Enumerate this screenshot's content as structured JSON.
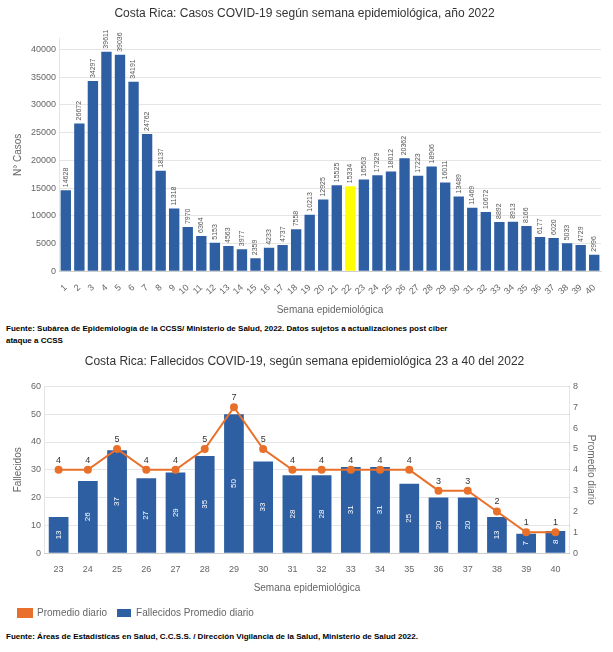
{
  "chart_data": [
    {
      "type": "bar",
      "title": "Costa Rica: Casos COVID-19 según semana epidemiológica, año 2022",
      "xlabel": "Semana epidemiológica",
      "ylabel": "N° Casos",
      "categories": [
        "1",
        "2",
        "3",
        "4",
        "5",
        "6",
        "7",
        "8",
        "9",
        "10",
        "11",
        "12",
        "13",
        "14",
        "15",
        "16",
        "17",
        "18",
        "19",
        "20",
        "21",
        "22",
        "23",
        "24",
        "25",
        "26",
        "27",
        "28",
        "29",
        "30",
        "31",
        "32",
        "33",
        "34",
        "35",
        "36",
        "37",
        "38",
        "39",
        "40"
      ],
      "values": [
        14628,
        26672,
        34297,
        39611,
        39036,
        34191,
        24762,
        18137,
        11318,
        7970,
        6364,
        5153,
        4563,
        3977,
        2359,
        4233,
        4737,
        7558,
        10213,
        12925,
        15525,
        15334,
        16563,
        17329,
        18012,
        20362,
        17223,
        18906,
        16011,
        13489,
        11469,
        10672,
        8892,
        8913,
        8166,
        6177,
        6020,
        5033,
        4729,
        2996
      ],
      "colors": [
        "#2E5FA3",
        "#2E5FA3",
        "#2E5FA3",
        "#2E5FA3",
        "#2E5FA3",
        "#2E5FA3",
        "#2E5FA3",
        "#2E5FA3",
        "#2E5FA3",
        "#2E5FA3",
        "#2E5FA3",
        "#2E5FA3",
        "#2E5FA3",
        "#2E5FA3",
        "#2E5FA3",
        "#2E5FA3",
        "#2E5FA3",
        "#2E5FA3",
        "#2E5FA3",
        "#2E5FA3",
        "#2E5FA3",
        "#FFFF00",
        "#2E5FA3",
        "#2E5FA3",
        "#2E5FA3",
        "#2E5FA3",
        "#2E5FA3",
        "#2E5FA3",
        "#2E5FA3",
        "#2E5FA3",
        "#2E5FA3",
        "#2E5FA3",
        "#2E5FA3",
        "#2E5FA3",
        "#2E5FA3",
        "#2E5FA3",
        "#2E5FA3",
        "#2E5FA3",
        "#2E5FA3",
        "#2E5FA3"
      ],
      "ylim": [
        0,
        42000
      ],
      "yticks": [
        0,
        5000,
        10000,
        15000,
        20000,
        25000,
        30000,
        35000,
        40000
      ],
      "grid": true,
      "data_labels": true,
      "annotations": [
        "Fuente: Subárea de Epidemiología de la CCSS/ Ministerio de Salud, 2022. Datos sujetos a actualizaciones post ciber",
        "ataque a CCSS"
      ]
    },
    {
      "type": "bar",
      "title": "Costa Rica: Fallecidos COVID-19, según semana epidemiológica 23 a 40 del 2022",
      "xlabel": "Semana epidemiológica",
      "ylabel": "Fallecidos",
      "y2label": "Promedio diario",
      "categories": [
        "23",
        "24",
        "25",
        "26",
        "27",
        "28",
        "29",
        "30",
        "31",
        "32",
        "33",
        "34",
        "35",
        "36",
        "37",
        "38",
        "39",
        "40"
      ],
      "series": [
        {
          "name": "Fallecidos Promedio diario",
          "type": "bar",
          "color": "#2E5FA3",
          "values": [
            13,
            26,
            37,
            27,
            29,
            35,
            50,
            33,
            28,
            28,
            31,
            31,
            25,
            20,
            20,
            13,
            7,
            8
          ]
        },
        {
          "name": "Promedio diario",
          "type": "line",
          "color": "#E8702A",
          "axis": "y2",
          "marker": "circle",
          "values": [
            4,
            4,
            5,
            4,
            4,
            5,
            7,
            5,
            4,
            4,
            4,
            4,
            4,
            3,
            3,
            2,
            1,
            1
          ]
        }
      ],
      "ylim": [
        0,
        60
      ],
      "yticks": [
        0,
        10,
        20,
        30,
        40,
        50,
        60
      ],
      "y2lim": [
        0,
        8
      ],
      "y2ticks": [
        0,
        1,
        2,
        3,
        4,
        5,
        6,
        7,
        8
      ],
      "grid": true,
      "legend": "bottom",
      "data_labels": true,
      "annotations": [
        "Fuente: Áreas de Estadísticas en Salud, C.C.S.S. / Dirección Vigilancia de la Salud, Ministerio de Salud 2022."
      ]
    }
  ]
}
